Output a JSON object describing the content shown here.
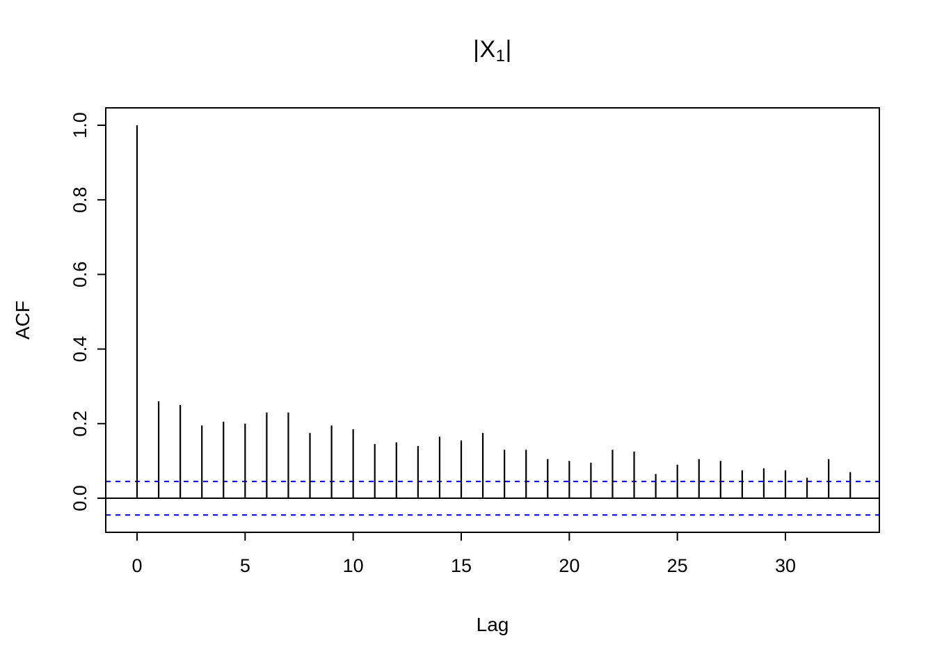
{
  "chart_data": {
    "type": "bar",
    "chart_kind": "autocorrelation-plot",
    "title_prefix": "|X",
    "title_subscript": "1",
    "title_suffix": "|",
    "xlabel": "Lag",
    "ylabel": "ACF",
    "x": [
      0,
      1,
      2,
      3,
      4,
      5,
      6,
      7,
      8,
      9,
      10,
      11,
      12,
      13,
      14,
      15,
      16,
      17,
      18,
      19,
      20,
      21,
      22,
      23,
      24,
      25,
      26,
      27,
      28,
      29,
      30,
      31,
      32,
      33
    ],
    "values": [
      1.0,
      0.26,
      0.25,
      0.195,
      0.205,
      0.2,
      0.23,
      0.23,
      0.175,
      0.195,
      0.185,
      0.145,
      0.15,
      0.14,
      0.165,
      0.155,
      0.175,
      0.13,
      0.13,
      0.105,
      0.1,
      0.095,
      0.13,
      0.125,
      0.065,
      0.09,
      0.105,
      0.1,
      0.075,
      0.08,
      0.075,
      0.055,
      0.105,
      0.07
    ],
    "conf_level": 0.045,
    "xticks": [
      0,
      5,
      10,
      15,
      20,
      25,
      30
    ],
    "ytick_values": [
      0.0,
      0.2,
      0.4,
      0.6,
      0.8,
      1.0
    ],
    "ytick_labels": [
      "0.0",
      "0.2",
      "0.4",
      "0.6",
      "0.8",
      "1.0"
    ],
    "ylim": [
      -0.09,
      1.05
    ],
    "xlim": [
      -1.3,
      34.3
    ],
    "grid": false,
    "legend": "none",
    "colors": {
      "spike": "#000000",
      "zero_line": "#000000",
      "conf_line": "#0000EE",
      "box": "#000000",
      "background": "#FFFFFF",
      "text": "#000000"
    }
  }
}
